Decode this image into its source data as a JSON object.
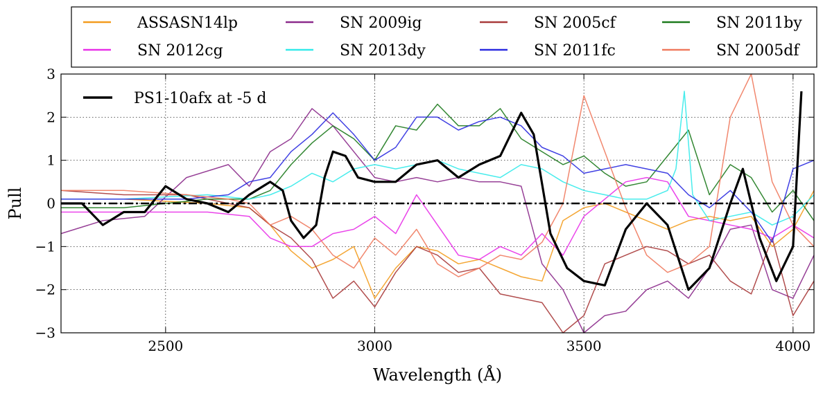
{
  "chart_data": {
    "type": "line",
    "xlabel": "Wavelength (Å)",
    "ylabel": "Pull",
    "xlim": [
      2250,
      4050
    ],
    "ylim": [
      -3,
      3
    ],
    "xticks": [
      2500,
      3000,
      3500,
      4000
    ],
    "yticks": [
      -3,
      -2,
      -1,
      0,
      1,
      2,
      3
    ],
    "grid": true,
    "legend_position": "top (outside plot)",
    "reference_line": {
      "y": 0,
      "style": "dash-dot",
      "color": "#000000"
    },
    "series": [
      {
        "name": "ASSASN14lp",
        "color": "#f39c1e",
        "x": [
          2250,
          2400,
          2600,
          2700,
          2750,
          2800,
          2850,
          2900,
          2950,
          3000,
          3050,
          3100,
          3150,
          3200,
          3250,
          3300,
          3350,
          3400,
          3450,
          3500,
          3550,
          3600,
          3650,
          3700,
          3750,
          3800,
          3850,
          3900,
          3950,
          4000,
          4050
        ],
        "y": [
          0.1,
          0.1,
          0,
          -0.1,
          -0.5,
          -1.1,
          -1.5,
          -1.3,
          -1,
          -2.2,
          -1.5,
          -1,
          -1.1,
          -1.4,
          -1.3,
          -1.5,
          -1.7,
          -1.8,
          -0.4,
          -0.1,
          0,
          -0.2,
          -0.4,
          -0.6,
          -0.4,
          -0.3,
          -0.4,
          -0.3,
          -1,
          -0.6,
          0.3
        ]
      },
      {
        "name": "SN 2009ig",
        "color": "#8b2a8b",
        "x": [
          2250,
          2350,
          2450,
          2550,
          2650,
          2700,
          2750,
          2800,
          2850,
          2900,
          2950,
          3000,
          3050,
          3100,
          3150,
          3200,
          3250,
          3300,
          3350,
          3400,
          3450,
          3500,
          3550,
          3600,
          3650,
          3700,
          3750,
          3800,
          3850,
          3900,
          3950,
          4000,
          4050
        ],
        "y": [
          -0.7,
          -0.4,
          -0.3,
          0.6,
          0.9,
          0.4,
          1.2,
          1.5,
          2.2,
          1.8,
          1.2,
          0.6,
          0.5,
          0.6,
          0.5,
          0.6,
          0.5,
          0.5,
          0.4,
          -1.4,
          -2,
          -3,
          -2.6,
          -2.5,
          -2,
          -1.8,
          -2.2,
          -1.5,
          -0.6,
          -0.5,
          -2,
          -2.2,
          -1.2
        ]
      },
      {
        "name": "SN 2005cf",
        "color": "#a83a3a",
        "x": [
          2250,
          2400,
          2550,
          2650,
          2700,
          2750,
          2800,
          2850,
          2900,
          2950,
          3000,
          3050,
          3100,
          3150,
          3200,
          3250,
          3300,
          3350,
          3400,
          3450,
          3500,
          3550,
          3600,
          3650,
          3700,
          3750,
          3800,
          3850,
          3900,
          3950,
          4000,
          4050
        ],
        "y": [
          0.3,
          0.2,
          0.2,
          0,
          -0.1,
          -0.5,
          -0.8,
          -1.3,
          -2.2,
          -1.8,
          -2.4,
          -1.6,
          -1,
          -1.2,
          -1.6,
          -1.5,
          -2.1,
          -2.2,
          -2.3,
          -3,
          -2.6,
          -1.4,
          -1.2,
          -1,
          -1.1,
          -1.4,
          -1.2,
          -1.8,
          -2.1,
          -0.8,
          -2.6,
          -1.8
        ]
      },
      {
        "name": "SN 2011by",
        "color": "#1d7a1d",
        "x": [
          2250,
          2400,
          2600,
          2700,
          2750,
          2800,
          2850,
          2900,
          2950,
          3000,
          3050,
          3100,
          3150,
          3200,
          3250,
          3300,
          3350,
          3400,
          3450,
          3500,
          3550,
          3600,
          3650,
          3700,
          3750,
          3800,
          3850,
          3900,
          3950,
          4000,
          4050
        ],
        "y": [
          -0.1,
          -0.1,
          0.1,
          0.1,
          0.3,
          0.9,
          1.4,
          1.8,
          1.5,
          1,
          1.8,
          1.7,
          2.3,
          1.8,
          1.8,
          2.2,
          1.5,
          1.2,
          0.9,
          1.1,
          0.7,
          0.4,
          0.5,
          1.1,
          1.7,
          0.2,
          0.9,
          0.6,
          -0.2,
          0.3,
          -0.4
        ]
      },
      {
        "name": "SN 2012cg",
        "color": "#e830e8",
        "x": [
          2250,
          2400,
          2600,
          2700,
          2750,
          2800,
          2850,
          2900,
          2950,
          3000,
          3050,
          3100,
          3150,
          3200,
          3250,
          3300,
          3350,
          3400,
          3450,
          3500,
          3550,
          3600,
          3650,
          3700,
          3750,
          3800,
          3850,
          3900,
          3950,
          4000,
          4050
        ],
        "y": [
          -0.2,
          -0.2,
          -0.2,
          -0.3,
          -0.8,
          -1,
          -1,
          -0.7,
          -0.6,
          -0.3,
          -0.7,
          0.2,
          -0.5,
          -1.2,
          -1.3,
          -1,
          -1.2,
          -0.7,
          -1.2,
          -0.3,
          0.1,
          0.5,
          0.6,
          0.5,
          -0.3,
          -0.4,
          -0.5,
          -0.6,
          -0.8,
          -0.5,
          -0.8
        ]
      },
      {
        "name": "SN 2013dy",
        "color": "#33eaea",
        "x": [
          2250,
          2400,
          2600,
          2700,
          2750,
          2800,
          2850,
          2900,
          2950,
          3000,
          3050,
          3100,
          3150,
          3200,
          3250,
          3300,
          3350,
          3400,
          3450,
          3500,
          3550,
          3600,
          3650,
          3700,
          3720,
          3740,
          3760,
          3800,
          3850,
          3900,
          3950,
          4000,
          4050
        ],
        "y": [
          0.1,
          0.1,
          0.2,
          0.1,
          0.2,
          0.4,
          0.7,
          0.5,
          0.8,
          0.9,
          0.8,
          0.9,
          1,
          0.8,
          0.7,
          0.6,
          0.9,
          0.8,
          0.5,
          0.3,
          0.2,
          0.1,
          0.1,
          0.3,
          0.8,
          2.6,
          0.2,
          -0.4,
          -0.3,
          -0.2,
          -0.5,
          -0.3,
          0.2
        ]
      },
      {
        "name": "SN 2011fc",
        "color": "#2b2be0",
        "x": [
          2250,
          2400,
          2550,
          2650,
          2700,
          2750,
          2800,
          2850,
          2900,
          2950,
          3000,
          3050,
          3100,
          3150,
          3200,
          3250,
          3300,
          3350,
          3400,
          3450,
          3500,
          3550,
          3600,
          3650,
          3700,
          3750,
          3800,
          3850,
          3900,
          3950,
          4000,
          4050
        ],
        "y": [
          0.1,
          0.1,
          0.1,
          0.2,
          0.5,
          0.6,
          1.2,
          1.6,
          2.1,
          1.6,
          1,
          1.3,
          2,
          2,
          1.7,
          1.9,
          2,
          1.8,
          1.3,
          1.1,
          0.7,
          0.8,
          0.9,
          0.8,
          0.7,
          0.2,
          -0.1,
          0.3,
          -0.2,
          -0.9,
          0.8,
          1
        ]
      },
      {
        "name": "SN 2005df",
        "color": "#ef7a5e",
        "x": [
          2250,
          2400,
          2550,
          2650,
          2700,
          2750,
          2800,
          2850,
          2900,
          2950,
          3000,
          3050,
          3100,
          3150,
          3200,
          3250,
          3300,
          3350,
          3400,
          3450,
          3500,
          3550,
          3600,
          3650,
          3700,
          3750,
          3800,
          3850,
          3900,
          3950,
          4000,
          4050
        ],
        "y": [
          0.3,
          0.3,
          0.2,
          0.1,
          0,
          -0.5,
          -0.3,
          -0.6,
          -1.2,
          -1.5,
          -0.8,
          -1.2,
          -0.6,
          -1.4,
          -1.7,
          -1.5,
          -1.2,
          -1.3,
          -0.9,
          0,
          2.5,
          1.2,
          -0.1,
          -1.2,
          -1.6,
          -1.4,
          -1,
          2,
          3,
          0.5,
          -0.5,
          -1
        ]
      },
      {
        "name": "PS1-10afx at -5 d",
        "color": "#000000",
        "x": [
          2250,
          2300,
          2350,
          2400,
          2450,
          2500,
          2550,
          2600,
          2650,
          2700,
          2750,
          2780,
          2800,
          2830,
          2860,
          2880,
          2900,
          2930,
          2960,
          3000,
          3050,
          3100,
          3150,
          3200,
          3250,
          3300,
          3350,
          3380,
          3420,
          3460,
          3500,
          3550,
          3600,
          3650,
          3700,
          3750,
          3800,
          3850,
          3880,
          3920,
          3960,
          4000,
          4020
        ],
        "y": [
          0,
          0,
          -0.5,
          -0.2,
          -0.2,
          0.4,
          0.1,
          0,
          -0.2,
          0.2,
          0.5,
          0.3,
          -0.4,
          -0.8,
          -0.5,
          0.6,
          1.2,
          1.1,
          0.6,
          0.5,
          0.5,
          0.9,
          1,
          0.6,
          0.9,
          1.1,
          2.1,
          1.6,
          -0.7,
          -1.5,
          -1.8,
          -1.9,
          -0.6,
          0,
          -0.5,
          -2,
          -1.5,
          0,
          0.8,
          -0.8,
          -1.8,
          -1,
          2.6
        ]
      }
    ]
  }
}
